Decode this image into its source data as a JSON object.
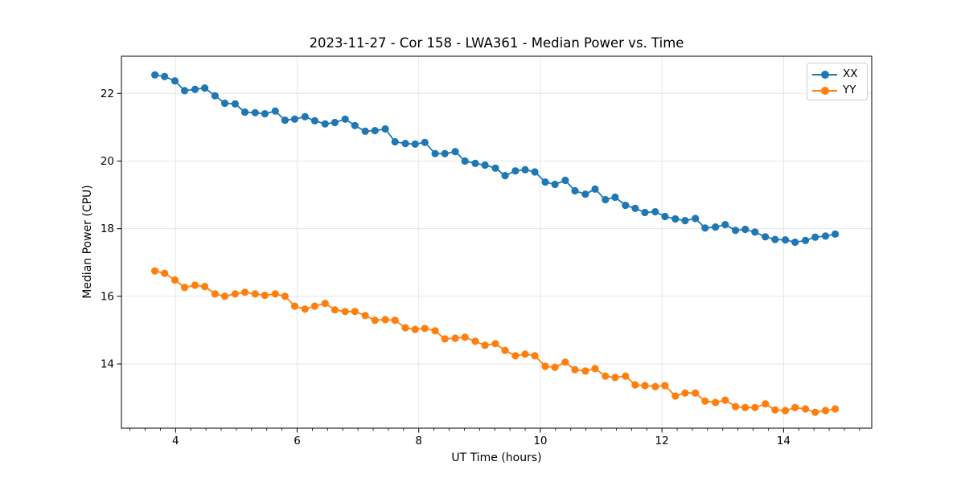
{
  "chart_data": {
    "type": "line",
    "title": "2023-11-27 - Cor 158 - LWA361 - Median Power vs. Time",
    "xlabel": "UT Time (hours)",
    "ylabel": "Median Power (CPU)",
    "xlim": [
      3.11,
      15.45
    ],
    "ylim": [
      12.1,
      23.1
    ],
    "xticks": [
      4,
      6,
      8,
      10,
      12,
      14
    ],
    "yticks": [
      14,
      16,
      18,
      20,
      22
    ],
    "minor_xtick_step": 0.25,
    "grid": true,
    "grid_color": "#e6e6e6",
    "legend_position": "upper right",
    "x": [
      3.66,
      3.82,
      3.99,
      4.15,
      4.32,
      4.48,
      4.65,
      4.81,
      4.98,
      5.14,
      5.31,
      5.47,
      5.64,
      5.8,
      5.96,
      6.13,
      6.29,
      6.46,
      6.62,
      6.79,
      6.95,
      7.12,
      7.28,
      7.45,
      7.61,
      7.78,
      7.94,
      8.1,
      8.27,
      8.43,
      8.6,
      8.76,
      8.93,
      9.09,
      9.26,
      9.42,
      9.59,
      9.75,
      9.91,
      10.08,
      10.24,
      10.41,
      10.57,
      10.74,
      10.9,
      11.07,
      11.23,
      11.4,
      11.56,
      11.72,
      11.89,
      12.05,
      12.22,
      12.38,
      12.55,
      12.71,
      12.88,
      13.04,
      13.21,
      13.37,
      13.53,
      13.7,
      13.86,
      14.03,
      14.19,
      14.36,
      14.52,
      14.69,
      14.85
    ],
    "series": [
      {
        "name": "XX",
        "color": "#1f77b4",
        "values": [
          22.55,
          22.5,
          22.37,
          22.08,
          22.12,
          22.16,
          21.93,
          21.71,
          21.69,
          21.45,
          21.43,
          21.4,
          21.48,
          21.21,
          21.24,
          21.31,
          21.19,
          21.1,
          21.14,
          21.24,
          21.05,
          20.88,
          20.9,
          20.95,
          20.57,
          20.52,
          20.5,
          20.55,
          20.22,
          20.22,
          20.28,
          20.0,
          19.93,
          19.88,
          19.79,
          19.57,
          19.71,
          19.74,
          19.68,
          19.38,
          19.31,
          19.43,
          19.12,
          19.02,
          19.17,
          18.86,
          18.93,
          18.69,
          18.6,
          18.48,
          18.5,
          18.36,
          18.29,
          18.24,
          18.3,
          18.02,
          18.05,
          18.12,
          17.95,
          17.98,
          17.9,
          17.76,
          17.68,
          17.67,
          17.6,
          17.65,
          17.75,
          17.78,
          17.84
        ]
      },
      {
        "name": "YY",
        "color": "#ff7f0e",
        "values": [
          16.75,
          16.68,
          16.48,
          16.26,
          16.33,
          16.29,
          16.07,
          16.0,
          16.07,
          16.12,
          16.07,
          16.03,
          16.07,
          16.0,
          15.71,
          15.62,
          15.71,
          15.79,
          15.6,
          15.55,
          15.55,
          15.43,
          15.29,
          15.31,
          15.29,
          15.07,
          15.02,
          15.05,
          14.98,
          14.74,
          14.76,
          14.79,
          14.67,
          14.55,
          14.6,
          14.4,
          14.24,
          14.29,
          14.24,
          13.93,
          13.9,
          14.05,
          13.83,
          13.79,
          13.86,
          13.64,
          13.6,
          13.64,
          13.38,
          13.36,
          13.33,
          13.36,
          13.05,
          13.14,
          13.14,
          12.9,
          12.86,
          12.93,
          12.74,
          12.71,
          12.71,
          12.82,
          12.64,
          12.62,
          12.71,
          12.67,
          12.57,
          12.62,
          12.67
        ]
      }
    ]
  }
}
